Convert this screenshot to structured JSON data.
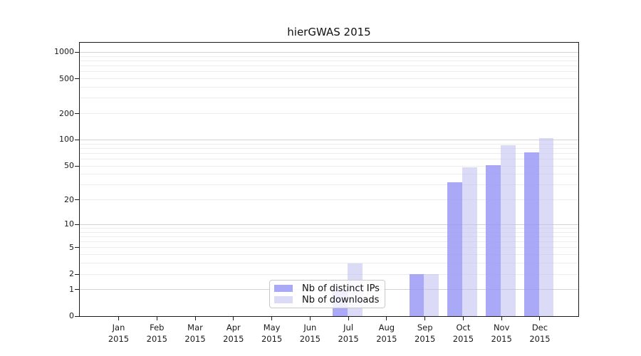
{
  "title": "hierGWAS 2015",
  "legend": {
    "items": [
      {
        "label": "Nb of distinct IPs",
        "swatch_color": "#a9a9f8"
      },
      {
        "label": "Nb of downloads",
        "swatch_color": "#dbdbf8"
      }
    ]
  },
  "chart_data": {
    "type": "bar",
    "title": "hierGWAS 2015",
    "categories": [
      "Jan",
      "Feb",
      "Mar",
      "Apr",
      "May",
      "Jun",
      "Jul",
      "Aug",
      "Sep",
      "Oct",
      "Nov",
      "Dec"
    ],
    "year": "2015",
    "series": [
      {
        "name": "Nb of distinct IPs",
        "color": "#a9a9f8",
        "values": [
          0,
          0,
          0,
          0,
          0,
          0,
          1,
          0,
          2,
          32,
          51,
          72
        ]
      },
      {
        "name": "Nb of downloads",
        "color": "#dbdbf8",
        "values": [
          0,
          0,
          0,
          0,
          0,
          0,
          3,
          0,
          2,
          48,
          87,
          105
        ]
      }
    ],
    "y_ticks": [
      0,
      1,
      2,
      5,
      10,
      20,
      50,
      100,
      200,
      500,
      1000
    ],
    "y_scale": "log10(1+x)",
    "ylim": [
      0,
      1280
    ],
    "grid": true,
    "grid_major_at": [
      1,
      10,
      100,
      1000
    ],
    "legend_position": "inside-bottom-center",
    "xlabel": "",
    "ylabel": ""
  }
}
